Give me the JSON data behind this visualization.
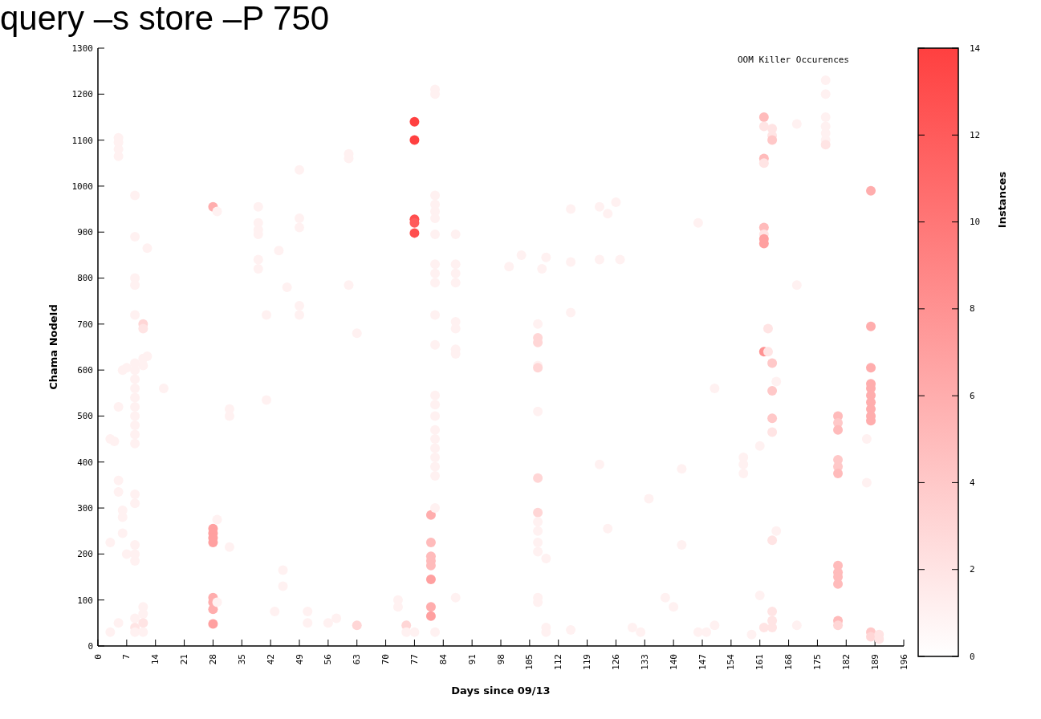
{
  "chart_data": {
    "type": "scatter",
    "title": "query –s store –P 750",
    "xlabel": "Days since 09/13",
    "ylabel": "Chama NodeId",
    "clabel": "Instances",
    "legend": "top right",
    "grid": false,
    "xlim": [
      0,
      196
    ],
    "xticks": [
      0,
      7,
      14,
      21,
      28,
      35,
      42,
      49,
      56,
      63,
      70,
      77,
      84,
      91,
      98,
      105,
      112,
      119,
      126,
      133,
      140,
      147,
      154,
      161,
      168,
      175,
      182,
      189,
      196
    ],
    "ylim": [
      0,
      1300
    ],
    "yticks": [
      0,
      100,
      200,
      300,
      400,
      500,
      600,
      700,
      800,
      900,
      1000,
      1100,
      1200,
      1300
    ],
    "clim": [
      0,
      14
    ],
    "cticks": [
      0,
      2,
      4,
      6,
      8,
      10,
      12,
      14
    ],
    "series": [
      {
        "name": "OOM Killer Occurences",
        "x": [
          3,
          3,
          3,
          4,
          5,
          5,
          5,
          5,
          5,
          5,
          5,
          5,
          6,
          6,
          6,
          6,
          7,
          7,
          9,
          9,
          9,
          9,
          9,
          9,
          9,
          9,
          9,
          9,
          9,
          9,
          9,
          9,
          9,
          9,
          9,
          9,
          9,
          9,
          9,
          9,
          9,
          11,
          11,
          11,
          11,
          11,
          11,
          11,
          11,
          12,
          12,
          16,
          28,
          28,
          28,
          28,
          28,
          28,
          28,
          28,
          28,
          29,
          29,
          29,
          32,
          32,
          32,
          39,
          39,
          39,
          39,
          39,
          39,
          41,
          41,
          43,
          44,
          45,
          45,
          46,
          49,
          49,
          49,
          49,
          49,
          51,
          51,
          56,
          58,
          61,
          61,
          61,
          63,
          63,
          73,
          73,
          75,
          75,
          77,
          77,
          77,
          77,
          77,
          77,
          81,
          81,
          81,
          81,
          81,
          81,
          81,
          81,
          82,
          82,
          82,
          82,
          82,
          82,
          82,
          82,
          82,
          82,
          82,
          82,
          82,
          82,
          82,
          82,
          82,
          82,
          82,
          82,
          82,
          82,
          82,
          87,
          87,
          87,
          87,
          87,
          87,
          87,
          87,
          87,
          100,
          103,
          107,
          107,
          107,
          107,
          107,
          107,
          107,
          107,
          107,
          107,
          107,
          107,
          107,
          107,
          108,
          109,
          109,
          109,
          109,
          115,
          115,
          115,
          115,
          122,
          122,
          122,
          124,
          124,
          126,
          127,
          130,
          132,
          134,
          138,
          140,
          142,
          142,
          146,
          146,
          148,
          150,
          150,
          157,
          157,
          157,
          159,
          161,
          161,
          162,
          162,
          162,
          162,
          162,
          162,
          162,
          162,
          162,
          162,
          163,
          163,
          164,
          164,
          164,
          164,
          164,
          164,
          164,
          164,
          164,
          164,
          164,
          165,
          165,
          170,
          170,
          170,
          177,
          177,
          177,
          177,
          177,
          177,
          177,
          180,
          180,
          180,
          180,
          180,
          180,
          180,
          180,
          180,
          180,
          180,
          180,
          187,
          187,
          188,
          188,
          188,
          188,
          188,
          188,
          188,
          188,
          188,
          188,
          188,
          188,
          190,
          190
        ],
        "values": [
          450,
          225,
          30,
          445,
          1105,
          1095,
          1080,
          1065,
          520,
          360,
          335,
          50,
          600,
          295,
          280,
          245,
          605,
          200,
          980,
          890,
          800,
          785,
          720,
          615,
          600,
          580,
          560,
          540,
          520,
          500,
          480,
          460,
          440,
          330,
          310,
          220,
          200,
          185,
          60,
          40,
          30,
          700,
          690,
          625,
          610,
          85,
          70,
          50,
          30,
          865,
          630,
          560,
          955,
          255,
          245,
          235,
          225,
          105,
          95,
          80,
          48,
          945,
          275,
          95,
          515,
          500,
          215,
          955,
          920,
          905,
          895,
          840,
          820,
          535,
          720,
          75,
          860,
          165,
          130,
          780,
          1035,
          930,
          910,
          740,
          720,
          75,
          50,
          50,
          60,
          1070,
          1060,
          785,
          680,
          45,
          100,
          85,
          45,
          30,
          1140,
          1100,
          928,
          920,
          898,
          30,
          285,
          225,
          195,
          185,
          175,
          145,
          85,
          65,
          1210,
          1200,
          980,
          960,
          945,
          930,
          895,
          830,
          810,
          790,
          720,
          655,
          545,
          525,
          500,
          470,
          450,
          430,
          410,
          390,
          370,
          300,
          30,
          895,
          830,
          810,
          790,
          705,
          690,
          645,
          635,
          105,
          825,
          850,
          700,
          670,
          660,
          610,
          605,
          510,
          365,
          290,
          270,
          250,
          225,
          205,
          105,
          95,
          820,
          845,
          190,
          40,
          30,
          950,
          835,
          725,
          35,
          955,
          840,
          395,
          940,
          255,
          965,
          840,
          40,
          30,
          320,
          105,
          85,
          220,
          385,
          920,
          30,
          30,
          560,
          45,
          410,
          395,
          375,
          25,
          435,
          110,
          1150,
          1130,
          1060,
          1050,
          910,
          895,
          885,
          875,
          640,
          40,
          690,
          640,
          1125,
          1110,
          1100,
          615,
          555,
          495,
          465,
          230,
          75,
          55,
          40,
          575,
          250,
          1135,
          785,
          45,
          1230,
          1200,
          1150,
          1130,
          1115,
          1100,
          1090,
          500,
          485,
          470,
          405,
          390,
          375,
          175,
          160,
          150,
          135,
          55,
          45,
          450,
          355,
          990,
          695,
          605,
          570,
          560,
          545,
          530,
          515,
          500,
          490,
          30,
          20,
          25,
          15
        ],
        "cvalues": [
          1,
          1,
          1,
          1,
          1,
          1,
          1,
          1,
          1,
          1,
          1,
          1,
          1,
          1,
          1,
          1,
          1,
          1,
          1,
          1,
          1,
          1,
          1,
          1,
          1,
          1,
          1,
          1,
          1,
          1,
          1,
          1,
          1,
          1,
          1,
          1,
          1,
          1,
          1,
          2,
          1,
          3,
          2,
          1,
          1,
          1,
          1,
          2,
          1,
          1,
          1,
          1,
          6,
          7,
          7,
          7,
          7,
          6,
          6,
          6,
          7,
          1,
          1,
          1,
          1,
          1,
          1,
          1,
          1,
          1,
          1,
          1,
          1,
          1,
          1,
          1,
          1,
          1,
          1,
          1,
          1,
          1,
          1,
          1,
          1,
          1,
          1,
          1,
          1,
          1,
          1,
          1,
          1,
          3,
          1,
          1,
          3,
          1,
          14,
          14,
          13,
          12,
          13,
          1,
          6,
          5,
          5,
          5,
          5,
          7,
          6,
          7,
          1,
          1,
          1,
          1,
          1,
          1,
          1,
          1,
          1,
          1,
          1,
          1,
          1,
          1,
          1,
          1,
          1,
          1,
          1,
          1,
          1,
          1,
          1,
          1,
          1,
          1,
          1,
          1,
          1,
          1,
          1,
          1,
          1,
          1,
          1,
          3,
          3,
          1,
          3,
          1,
          3,
          3,
          1,
          1,
          1,
          1,
          1,
          1,
          1,
          1,
          1,
          1,
          1,
          1,
          1,
          1,
          1,
          1,
          1,
          1,
          1,
          1,
          1,
          1,
          1,
          1,
          1,
          1,
          1,
          1,
          1,
          1,
          1,
          1,
          1,
          1,
          1,
          1,
          1,
          1,
          1,
          1,
          5,
          2,
          5,
          2,
          5,
          2,
          7,
          7,
          8,
          2,
          2,
          2,
          2,
          2,
          4,
          4,
          4,
          4,
          2,
          2,
          2,
          2,
          2,
          1,
          1,
          1,
          1,
          1,
          1,
          1,
          1,
          1,
          1,
          1,
          2,
          5,
          4,
          5,
          4,
          4,
          5,
          5,
          5,
          5,
          5,
          5,
          3,
          1,
          1,
          6,
          6,
          6,
          6,
          6,
          6,
          6,
          6,
          6,
          6,
          4,
          3,
          2,
          2
        ]
      }
    ]
  }
}
